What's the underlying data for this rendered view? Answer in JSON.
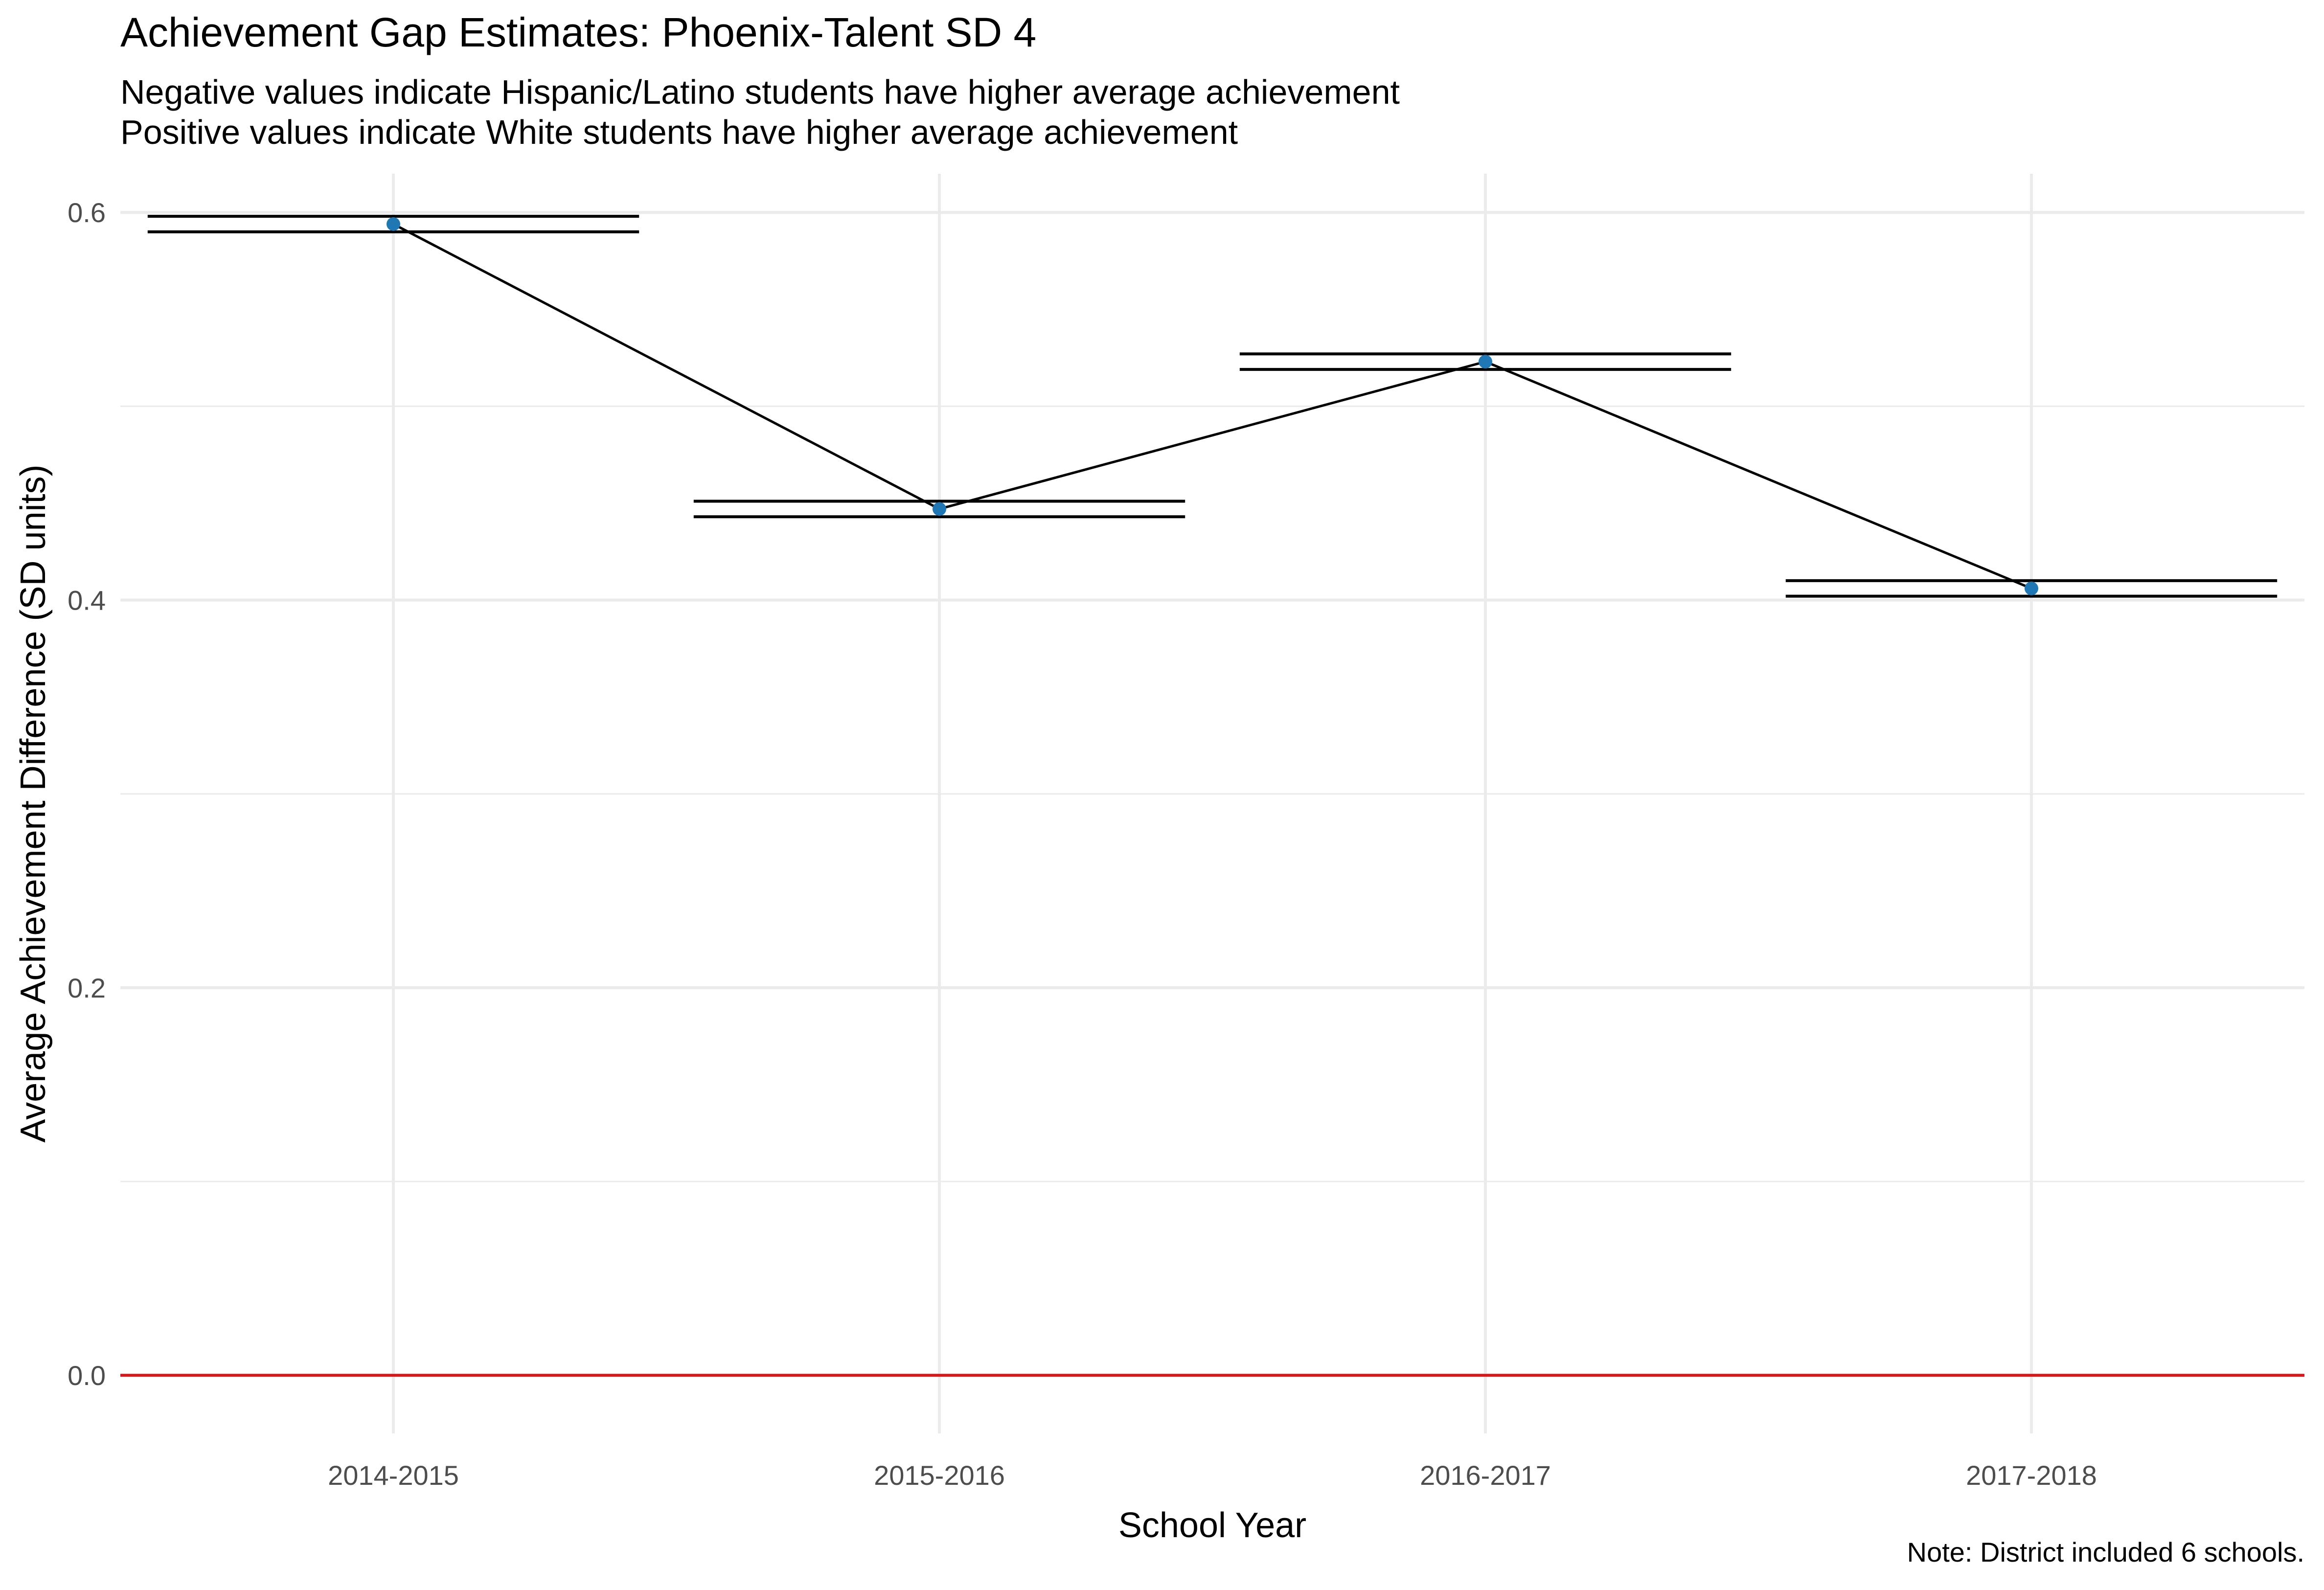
{
  "chart_data": {
    "type": "line",
    "title": "Achievement Gap Estimates: Phoenix-Talent SD 4",
    "subtitle_lines": [
      "Negative values indicate Hispanic/Latino students have higher average achievement",
      "Positive values indicate White students have higher average achievement"
    ],
    "xlabel": "School Year",
    "ylabel": "Average Achievement Difference (SD units)",
    "caption": "Note: District included 6 schools.",
    "categories": [
      "2014-2015",
      "2015-2016",
      "2016-2017",
      "2017-2018"
    ],
    "series": [
      {
        "values": [
          0.594,
          0.447,
          0.523,
          0.406
        ],
        "lower": [
          0.59,
          0.443,
          0.519,
          0.402
        ],
        "upper": [
          0.598,
          0.451,
          0.527,
          0.41
        ]
      }
    ],
    "ylim": [
      -0.03,
      0.62
    ],
    "yticks": [
      0.0,
      0.2,
      0.4,
      0.6
    ],
    "ytick_labels": [
      "0.0",
      "0.2",
      "0.4",
      "0.6"
    ],
    "reference_line": 0.0,
    "grid": true,
    "colors": {
      "point": "#1f78b4",
      "line": "#000000",
      "errorbar": "#000000",
      "reference_line": "#d7191c",
      "grid": "#ebebeb"
    }
  }
}
